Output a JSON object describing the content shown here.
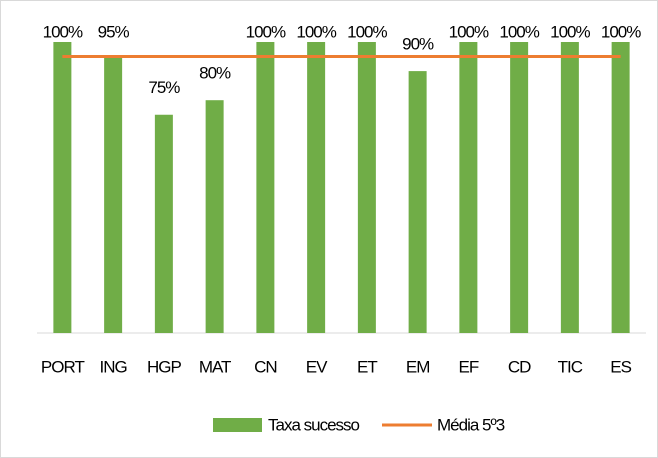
{
  "chart_data": {
    "type": "bar",
    "categories": [
      "PORT",
      "ING",
      "HGP",
      "MAT",
      "CN",
      "EV",
      "ET",
      "EM",
      "EF",
      "CD",
      "TIC",
      "ES"
    ],
    "ylim": [
      0,
      100
    ],
    "series": [
      {
        "name": "Taxa sucesso",
        "type": "bar",
        "color": "#70ad47",
        "values": [
          100,
          95,
          75,
          80,
          100,
          100,
          100,
          90,
          100,
          100,
          100,
          100
        ],
        "value_labels": [
          "100%",
          "95%",
          "75%",
          "80%",
          "100%",
          "100%",
          "100%",
          "90%",
          "100%",
          "100%",
          "100%",
          "100%"
        ]
      },
      {
        "name": "Média 5º3",
        "type": "line",
        "color": "#ed7d31",
        "values": [
          95,
          95,
          95,
          95,
          95,
          95,
          95,
          95,
          95,
          95,
          95,
          95
        ]
      }
    ],
    "legend": "bottom"
  }
}
